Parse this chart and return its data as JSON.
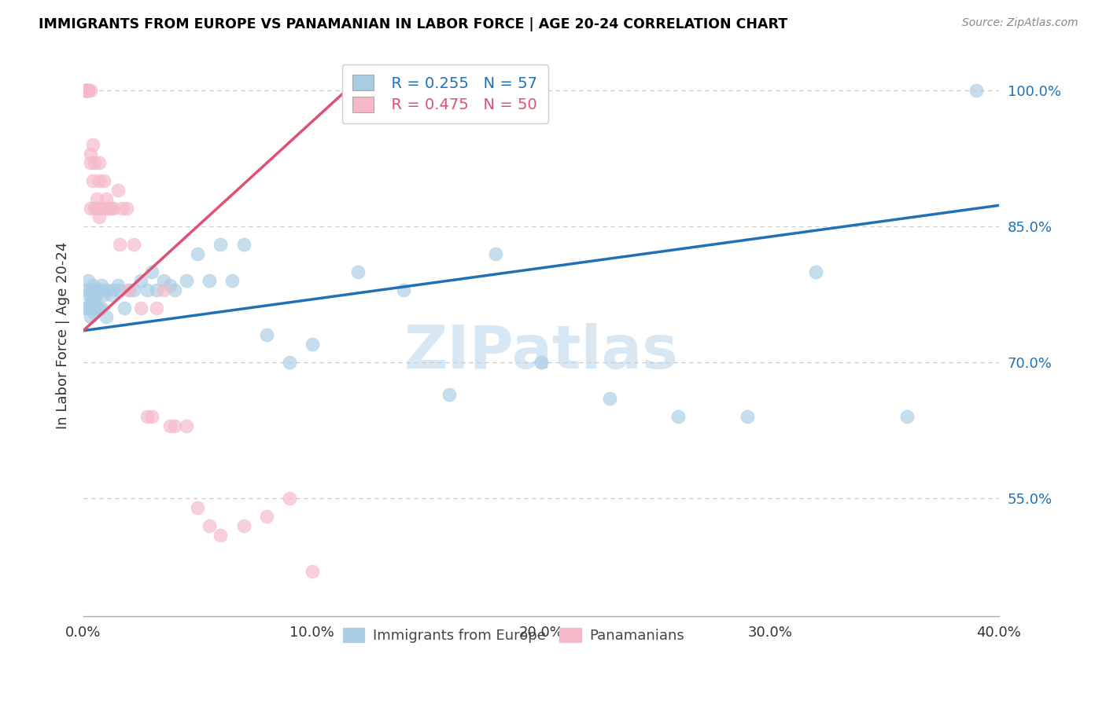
{
  "title": "IMMIGRANTS FROM EUROPE VS PANAMANIAN IN LABOR FORCE | AGE 20-24 CORRELATION CHART",
  "source_text": "Source: ZipAtlas.com",
  "ylabel": "In Labor Force | Age 20-24",
  "xlim": [
    0.0,
    0.4
  ],
  "ylim": [
    0.42,
    1.04
  ],
  "xticks": [
    0.0,
    0.1,
    0.2,
    0.3,
    0.4
  ],
  "xtick_labels": [
    "0.0%",
    "10.0%",
    "20.0%",
    "30.0%",
    "40.0%"
  ],
  "yticks_right": [
    0.55,
    0.7,
    0.85,
    1.0
  ],
  "ytick_labels_right": [
    "55.0%",
    "70.0%",
    "85.0%",
    "100.0%"
  ],
  "blue_label": "Immigrants from Europe",
  "pink_label": "Panamanians",
  "blue_R": "R = 0.255",
  "blue_N": "N = 57",
  "pink_R": "R = 0.475",
  "pink_N": "N = 50",
  "blue_color": "#a8cce4",
  "pink_color": "#f5b8c8",
  "blue_line_color": "#2171b5",
  "pink_line_color": "#e05070",
  "grid_color": "#c8c8c8",
  "watermark": "ZIPatlas",
  "watermark_color": "#b8d4ec",
  "blue_line": [
    [
      0.0,
      0.735
    ],
    [
      0.4,
      0.873
    ]
  ],
  "pink_line": [
    [
      0.0,
      0.735
    ],
    [
      0.115,
      1.0
    ]
  ],
  "blue_x": [
    0.001,
    0.001,
    0.002,
    0.002,
    0.002,
    0.003,
    0.003,
    0.003,
    0.004,
    0.004,
    0.004,
    0.005,
    0.005,
    0.005,
    0.006,
    0.006,
    0.007,
    0.007,
    0.008,
    0.008,
    0.009,
    0.01,
    0.01,
    0.012,
    0.013,
    0.015,
    0.016,
    0.018,
    0.02,
    0.022,
    0.025,
    0.028,
    0.03,
    0.032,
    0.035,
    0.038,
    0.04,
    0.045,
    0.05,
    0.055,
    0.06,
    0.065,
    0.07,
    0.08,
    0.09,
    0.1,
    0.12,
    0.14,
    0.16,
    0.18,
    0.2,
    0.23,
    0.26,
    0.29,
    0.32,
    0.36,
    0.39
  ],
  "blue_y": [
    0.78,
    0.76,
    0.79,
    0.775,
    0.76,
    0.78,
    0.765,
    0.75,
    0.785,
    0.77,
    0.76,
    0.78,
    0.77,
    0.755,
    0.775,
    0.76,
    0.78,
    0.76,
    0.785,
    0.76,
    0.775,
    0.78,
    0.75,
    0.775,
    0.78,
    0.785,
    0.78,
    0.76,
    0.78,
    0.78,
    0.79,
    0.78,
    0.8,
    0.78,
    0.79,
    0.785,
    0.78,
    0.79,
    0.82,
    0.79,
    0.83,
    0.79,
    0.83,
    0.73,
    0.7,
    0.72,
    0.8,
    0.78,
    0.665,
    0.82,
    0.7,
    0.66,
    0.64,
    0.64,
    0.8,
    0.64,
    1.0
  ],
  "pink_x": [
    0.001,
    0.001,
    0.001,
    0.001,
    0.001,
    0.002,
    0.002,
    0.002,
    0.002,
    0.003,
    0.003,
    0.003,
    0.003,
    0.004,
    0.004,
    0.005,
    0.005,
    0.006,
    0.006,
    0.007,
    0.007,
    0.007,
    0.008,
    0.009,
    0.01,
    0.01,
    0.011,
    0.012,
    0.013,
    0.015,
    0.016,
    0.017,
    0.019,
    0.02,
    0.022,
    0.025,
    0.028,
    0.03,
    0.032,
    0.035,
    0.038,
    0.04,
    0.045,
    0.05,
    0.055,
    0.06,
    0.07,
    0.08,
    0.09,
    0.1
  ],
  "pink_y": [
    1.0,
    1.0,
    1.0,
    1.0,
    1.0,
    1.0,
    1.0,
    1.0,
    1.0,
    1.0,
    0.92,
    0.87,
    0.93,
    0.9,
    0.94,
    0.87,
    0.92,
    0.88,
    0.87,
    0.86,
    0.9,
    0.92,
    0.87,
    0.9,
    0.88,
    0.87,
    0.87,
    0.87,
    0.87,
    0.89,
    0.83,
    0.87,
    0.87,
    0.78,
    0.83,
    0.76,
    0.64,
    0.64,
    0.76,
    0.78,
    0.63,
    0.63,
    0.63,
    0.54,
    0.52,
    0.51,
    0.52,
    0.53,
    0.55,
    0.47
  ]
}
